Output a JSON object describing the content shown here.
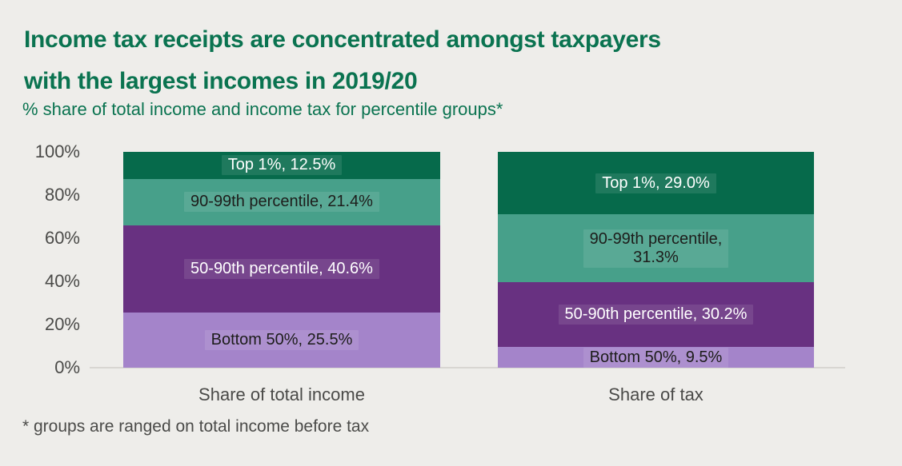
{
  "header": {
    "title_line1": "Income tax receipts are concentrated amongst taxpayers",
    "title_line2": "with the largest incomes in 2019/20",
    "subtitle": "% share of total income and income tax for percentile groups*"
  },
  "footnote": "* groups are ranged on total income before tax",
  "colors": {
    "background": "#eeedea",
    "title_green": "#0a7350",
    "axis_text": "#4a4a48",
    "axis_line": "#d8d6d2",
    "segment_top1": "#066a4b",
    "segment_90_99": "#47a08a",
    "segment_50_90": "#683181",
    "segment_bottom50": "#a484ca",
    "label_on_dark": "#ffffff",
    "label_on_light": "#1d1d1b"
  },
  "chart_data": {
    "type": "bar",
    "subtype": "100-percent-stacked-column",
    "title": "% share of total income and income tax for percentile groups*",
    "categories": [
      "Share of total income",
      "Share of tax"
    ],
    "series": [
      {
        "name": "Top 1%",
        "values": [
          12.5,
          29.0
        ],
        "color": "#066a4b",
        "text_color": "#ffffff"
      },
      {
        "name": "90-99th percentile",
        "values": [
          21.4,
          31.3
        ],
        "color": "#47a08a",
        "text_color": "#1d1d1b"
      },
      {
        "name": "50-90th percentile",
        "values": [
          40.6,
          30.2
        ],
        "color": "#683181",
        "text_color": "#ffffff"
      },
      {
        "name": "Bottom 50%",
        "values": [
          25.5,
          9.5
        ],
        "color": "#a484ca",
        "text_color": "#1d1d1b"
      }
    ],
    "segment_labels": [
      [
        "Top 1%, 12.5%",
        "90-99th percentile, 21.4%",
        "50-90th percentile, 40.6%",
        "Bottom 50%, 25.5%"
      ],
      [
        "Top 1%, 29.0%",
        "90-99th percentile,\n31.3%",
        "50-90th percentile, 30.2%",
        "Bottom 50%, 9.5%"
      ]
    ],
    "y_axis": {
      "min": 0,
      "max": 100,
      "tick_step": 20,
      "tick_labels": [
        "100%",
        "80%",
        "60%",
        "40%",
        "20%",
        "0%"
      ]
    },
    "xlabel": "",
    "ylabel": "",
    "legend": "none",
    "gridlines": false
  }
}
